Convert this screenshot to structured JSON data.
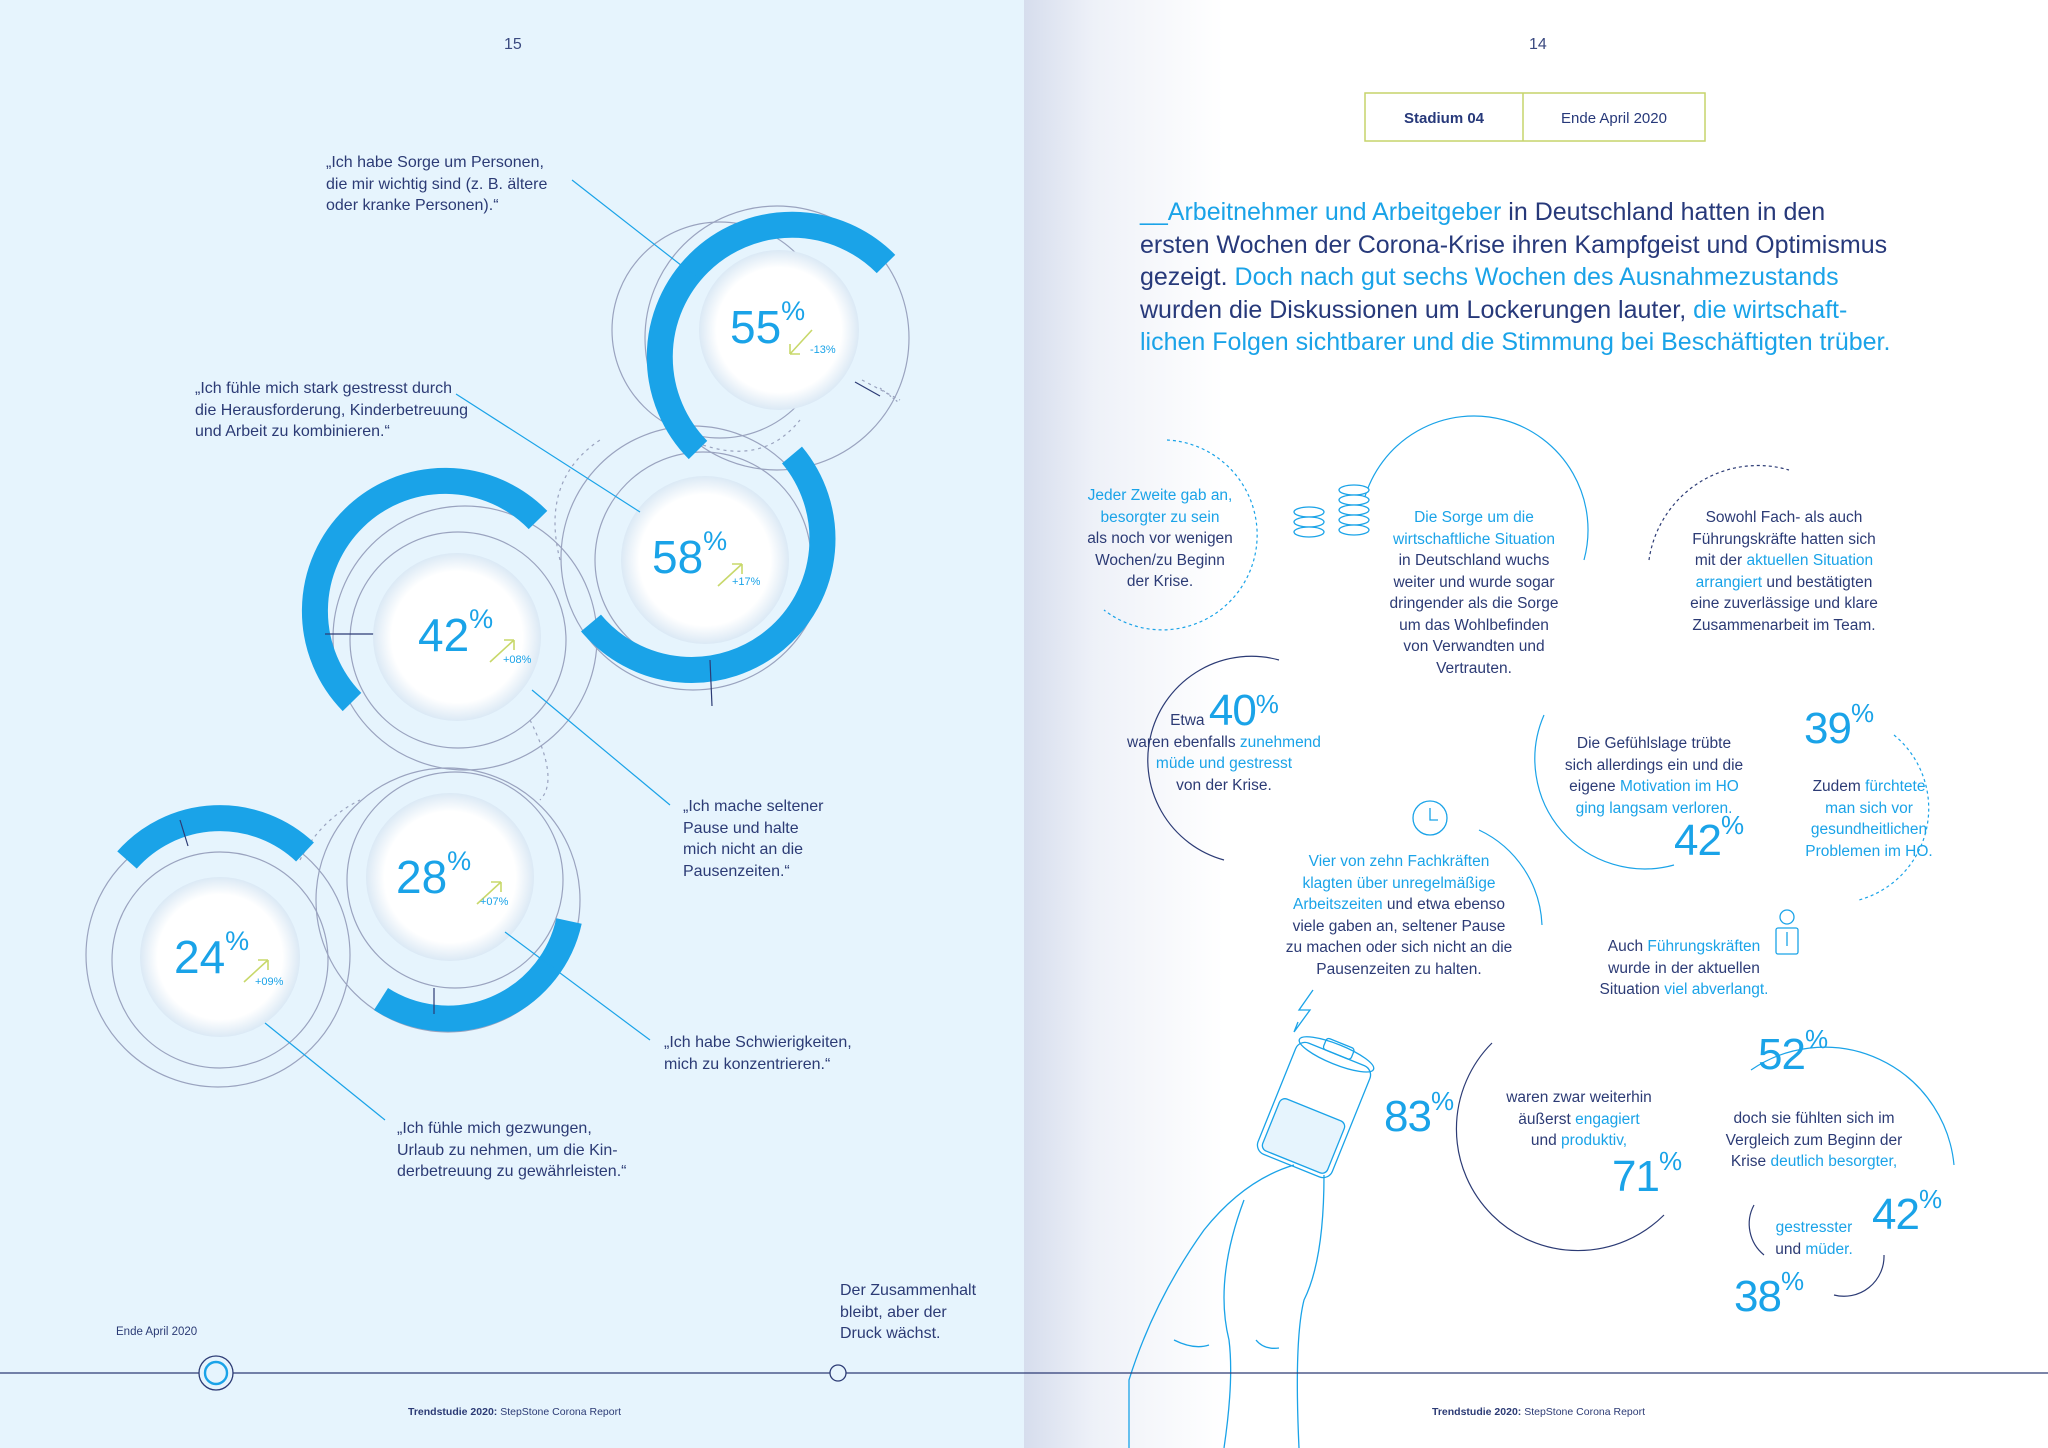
{
  "left": {
    "page_number": "15",
    "rings": [
      {
        "value": "55",
        "pct": "%",
        "delta": "-13%",
        "direction": "down"
      },
      {
        "value": "58",
        "pct": "%",
        "delta": "+17%",
        "direction": "up"
      },
      {
        "value": "42",
        "pct": "%",
        "delta": "+08%",
        "direction": "up"
      },
      {
        "value": "28",
        "pct": "%",
        "delta": "+07%",
        "direction": "up"
      },
      {
        "value": "24",
        "pct": "%",
        "delta": "+09%",
        "direction": "up"
      }
    ],
    "quotes": {
      "q1": [
        "„Ich habe Sorge um Personen,",
        "die mir wichtig sind (z. B. ältere",
        "oder kranke Personen).“"
      ],
      "q2": [
        "„Ich fühle mich stark gestresst durch",
        "die Herausforderung, Kinderbetreuung",
        "und Arbeit zu kombinieren.“"
      ],
      "q3": [
        "„Ich mache seltener",
        "Pause und halte",
        "mich nicht an die",
        "Pausenzeiten.“"
      ],
      "q4": [
        "„Ich habe Schwierigkeiten,",
        "mich zu konzentrieren.“"
      ],
      "q5": [
        "„Ich fühle mich gezwungen,",
        "Urlaub zu nehmen, um die Kin-",
        "derbetreuung zu gewährleisten.“"
      ]
    },
    "timeline_label": "Ende  April 2020",
    "timeline_note": [
      "Der Zusammenhalt",
      "bleibt, aber der",
      "Druck wächst."
    ],
    "footer_bold": "Trendstudie 2020:",
    "footer_rest": " StepStone Corona Report"
  },
  "right": {
    "page_number": "14",
    "stage_label": "Stadium 04",
    "stage_date": "Ende April 2020",
    "headline": {
      "l1a": "__Arbeitnehmer und Arbeitgeber",
      "l1b": " in Deutschland hatten in den",
      "l2": "ersten Wochen der Corona-Krise ihren Kampfgeist und Optimismus",
      "l3a": "gezeigt. ",
      "l3b": "Doch nach gut sechs Wochen des Ausnahmezustands",
      "l4a": "wurden die Diskussionen um Lockerungen lauter, ",
      "l4b": "die wirtschaft-",
      "l5": "lichen Folgen sichtbarer und die Stimmung bei Beschäftigten trüber."
    },
    "b1": {
      "l1": "Jeder Zweite gab an,",
      "l2": "besorgter zu sein",
      "l3": "als noch vor wenigen",
      "l4": "Wochen/zu Beginn",
      "l5": "der Krise."
    },
    "b2": {
      "l1": "Die Sorge um die",
      "l2": "wirtschaftliche Situation",
      "l3": "in Deutschland wuchs",
      "l4": "weiter und wurde sogar",
      "l5": "dringender als die Sorge",
      "l6": "um das Wohlbefinden",
      "l7": "von Verwandten und",
      "l8": "Vertrauten."
    },
    "b3": {
      "l1": "Sowohl Fach- als auch",
      "l2": "Führungskräfte hatten sich",
      "l3a": "mit der ",
      "l3b": "aktuellen Situation",
      "l4a": "arrangiert",
      "l4b": " und bestätigten",
      "l5": "eine zuverlässige und klare",
      "l6": "Zusammenarbeit im Team."
    },
    "b4": {
      "pre": "Etwa",
      "value": "40",
      "pct": "%",
      "l2a": "waren ebenfalls ",
      "l2b": "zunehmend",
      "l3": "müde und gestresst",
      "l4": "von der Krise."
    },
    "b5": {
      "l1": "Die Gefühlslage trübte",
      "l2": "sich allerdings ein und die",
      "l3a": "eigene ",
      "l3b": "Motivation im HO",
      "l4": "ging langsam verloren.",
      "value": "42",
      "pct": "%"
    },
    "b6": {
      "value": "39",
      "pct": "%",
      "l1a": "Zudem ",
      "l1b": "fürchtete",
      "l2": "man sich vor",
      "l3": "gesundheitlichen",
      "l4": "Problemen im HO."
    },
    "b7": {
      "l1": "Vier von zehn Fachkräften",
      "l2": "klagten über unregelmäßige",
      "l3a": "Arbeitszeiten",
      "l3b": " und etwa ebenso",
      "l4": "viele gaben an, seltener Pause",
      "l5": "zu machen oder sich nicht an die",
      "l6": "Pausenzeiten zu halten."
    },
    "b8": {
      "l1a": "Auch ",
      "l1b": "Führungskräften",
      "l2": "wurde in der aktuellen",
      "l3a": "Situation ",
      "l3b": "viel abverlangt."
    },
    "b9": {
      "value": "83",
      "pct": "%",
      "l1": "waren zwar weiterhin",
      "l2a": "äußerst ",
      "l2b": "engagiert",
      "l3a": "und ",
      "l3b": "produktiv,",
      "value2": "71",
      "pct2": "%"
    },
    "b10": {
      "value": "52",
      "pct": "%",
      "l1": "doch sie fühlten sich im",
      "l2": "Vergleich zum Beginn der",
      "l3a": "Krise ",
      "l3b": "deutlich besorgter,",
      "value2": "42",
      "pct2": "%",
      "l4": "gestresster",
      "l5a": "und ",
      "l5b": "müder.",
      "value3": "38",
      "pct3": "%"
    },
    "footer_bold": "Trendstudie 2020:",
    "footer_rest": " StepStone Corona Report"
  }
}
